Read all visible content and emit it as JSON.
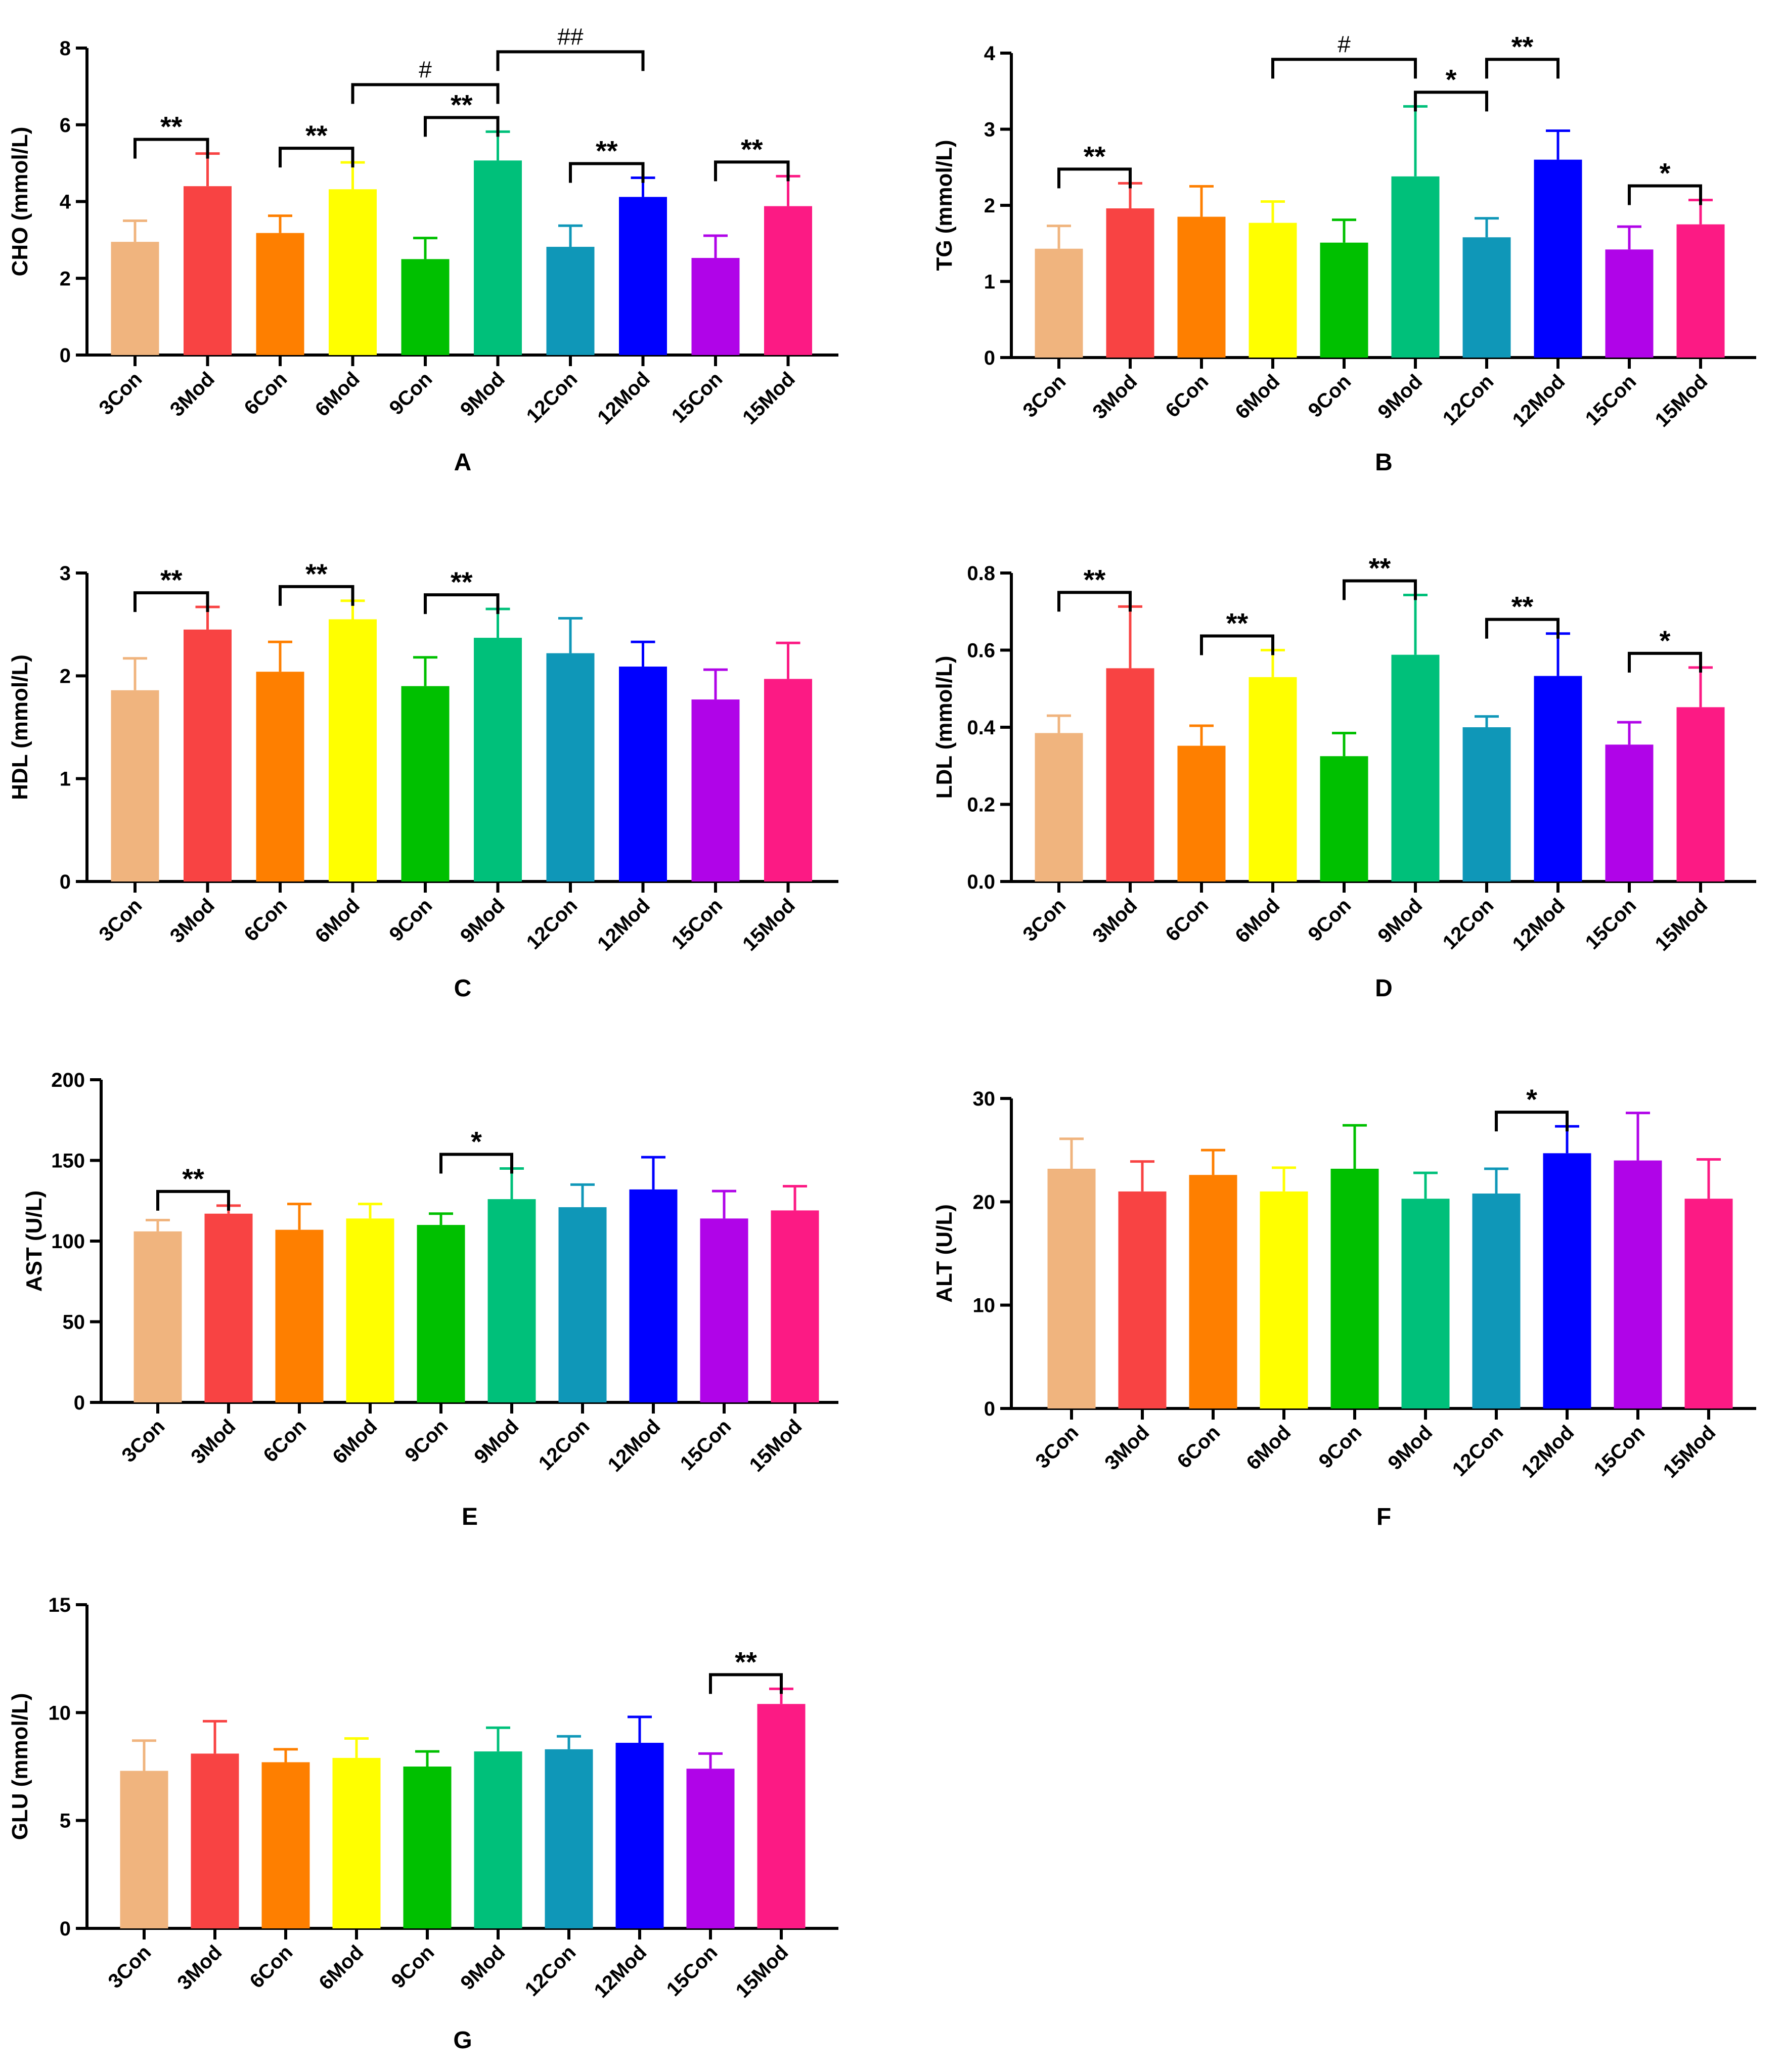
{
  "chart_data": [
    {
      "panel": "A",
      "type": "bar",
      "ylabel": "CHO (mmol/L)",
      "ylim": [
        0,
        8
      ],
      "yticks": [
        0,
        2,
        4,
        6,
        8
      ],
      "categories": [
        "3Con",
        "3Mod",
        "6Con",
        "6Mod",
        "9Con",
        "9Mod",
        "12Con",
        "12Mod",
        "15Con",
        "15Mod"
      ],
      "values": [
        2.95,
        4.4,
        3.18,
        4.32,
        2.5,
        5.07,
        2.82,
        4.12,
        2.53,
        3.88
      ],
      "errors": [
        0.55,
        0.85,
        0.45,
        0.7,
        0.55,
        0.75,
        0.55,
        0.5,
        0.58,
        0.78
      ],
      "brackets": [
        {
          "from": 0,
          "to": 1,
          "label": "**"
        },
        {
          "from": 2,
          "to": 3,
          "label": "**"
        },
        {
          "from": 4,
          "to": 5,
          "label": "**"
        },
        {
          "from": 6,
          "to": 7,
          "label": "**"
        },
        {
          "from": 8,
          "to": 9,
          "label": "**"
        },
        {
          "from": 3,
          "to": 5,
          "label": "#"
        },
        {
          "from": 5,
          "to": 7,
          "label": "##"
        }
      ]
    },
    {
      "panel": "B",
      "type": "bar",
      "ylabel": "TG (mmol/L)",
      "ylim": [
        0,
        4
      ],
      "yticks": [
        0,
        1,
        2,
        3,
        4
      ],
      "categories": [
        "3Con",
        "3Mod",
        "6Con",
        "6Mod",
        "9Con",
        "9Mod",
        "12Con",
        "12Mod",
        "15Con",
        "15Mod"
      ],
      "values": [
        1.43,
        1.96,
        1.85,
        1.77,
        1.51,
        2.38,
        1.58,
        2.6,
        1.42,
        1.75
      ],
      "errors": [
        0.3,
        0.33,
        0.4,
        0.28,
        0.3,
        0.92,
        0.25,
        0.38,
        0.3,
        0.32
      ],
      "brackets": [
        {
          "from": 0,
          "to": 1,
          "label": "**"
        },
        {
          "from": 5,
          "to": 6,
          "label": "*"
        },
        {
          "from": 3,
          "to": 5,
          "label": "#"
        },
        {
          "from": 6,
          "to": 7,
          "label": "**"
        },
        {
          "from": 8,
          "to": 9,
          "label": "*"
        }
      ]
    },
    {
      "panel": "C",
      "type": "bar",
      "ylabel": "HDL (mmol/L)",
      "ylim": [
        0,
        3
      ],
      "yticks": [
        0,
        1,
        2,
        3
      ],
      "categories": [
        "3Con",
        "3Mod",
        "6Con",
        "6Mod",
        "9Con",
        "9Mod",
        "12Con",
        "12Mod",
        "15Con",
        "15Mod"
      ],
      "values": [
        1.86,
        2.45,
        2.04,
        2.55,
        1.9,
        2.37,
        2.22,
        2.09,
        1.77,
        1.97
      ],
      "errors": [
        0.31,
        0.22,
        0.29,
        0.18,
        0.28,
        0.28,
        0.34,
        0.24,
        0.29,
        0.35
      ],
      "brackets": [
        {
          "from": 0,
          "to": 1,
          "label": "**"
        },
        {
          "from": 2,
          "to": 3,
          "label": "**"
        },
        {
          "from": 4,
          "to": 5,
          "label": "**"
        }
      ]
    },
    {
      "panel": "D",
      "type": "bar",
      "ylabel": "LDL (mmol/L)",
      "ylim": [
        0,
        0.8
      ],
      "yticks": [
        0.0,
        0.2,
        0.4,
        0.6,
        0.8
      ],
      "categories": [
        "3Con",
        "3Mod",
        "6Con",
        "6Mod",
        "9Con",
        "9Mod",
        "12Con",
        "12Mod",
        "15Con",
        "15Mod"
      ],
      "values": [
        0.385,
        0.553,
        0.352,
        0.53,
        0.325,
        0.588,
        0.4,
        0.533,
        0.355,
        0.452
      ],
      "errors": [
        0.045,
        0.16,
        0.052,
        0.07,
        0.06,
        0.155,
        0.028,
        0.11,
        0.058,
        0.103
      ],
      "brackets": [
        {
          "from": 0,
          "to": 1,
          "label": "**"
        },
        {
          "from": 2,
          "to": 3,
          "label": "**"
        },
        {
          "from": 4,
          "to": 5,
          "label": "**"
        },
        {
          "from": 6,
          "to": 7,
          "label": "**"
        },
        {
          "from": 8,
          "to": 9,
          "label": "*"
        }
      ]
    },
    {
      "panel": "E",
      "type": "bar",
      "ylabel": "AST (U/L)",
      "ylim": [
        0,
        200
      ],
      "yticks": [
        0,
        50,
        100,
        150,
        200
      ],
      "categories": [
        "3Con",
        "3Mod",
        "6Con",
        "6Mod",
        "9Con",
        "9Mod",
        "12Con",
        "12Mod",
        "15Con",
        "15Mod"
      ],
      "values": [
        106,
        117,
        107,
        114,
        110,
        126,
        121,
        132,
        114,
        119
      ],
      "errors": [
        7,
        5,
        16,
        9,
        7,
        19,
        14,
        20,
        17,
        15
      ],
      "brackets": [
        {
          "from": 0,
          "to": 1,
          "label": "**"
        },
        {
          "from": 4,
          "to": 5,
          "label": "*"
        }
      ]
    },
    {
      "panel": "F",
      "type": "bar",
      "ylabel": "ALT (U/L)",
      "ylim": [
        0,
        30
      ],
      "yticks": [
        0,
        10,
        20,
        30
      ],
      "categories": [
        "3Con",
        "3Mod",
        "6Con",
        "6Mod",
        "9Con",
        "9Mod",
        "12Con",
        "12Mod",
        "15Con",
        "15Mod"
      ],
      "values": [
        23.2,
        21,
        22.6,
        21,
        23.2,
        20.3,
        20.8,
        24.7,
        24,
        20.3
      ],
      "errors": [
        2.9,
        2.9,
        2.4,
        2.3,
        4.2,
        2.5,
        2.4,
        2.6,
        4.6,
        3.8
      ],
      "brackets": [
        {
          "from": 6,
          "to": 7,
          "label": "*"
        }
      ]
    },
    {
      "panel": "G",
      "type": "bar",
      "ylabel": "GLU (mmol/L)",
      "ylim": [
        0,
        15
      ],
      "yticks": [
        0,
        5,
        10,
        15
      ],
      "categories": [
        "3Con",
        "3Mod",
        "6Con",
        "6Mod",
        "9Con",
        "9Mod",
        "12Con",
        "12Mod",
        "15Con",
        "15Mod"
      ],
      "values": [
        7.3,
        8.1,
        7.7,
        7.9,
        7.5,
        8.2,
        8.3,
        8.6,
        7.4,
        10.4
      ],
      "errors": [
        1.4,
        1.5,
        0.6,
        0.9,
        0.7,
        1.1,
        0.6,
        1.2,
        0.7,
        0.7
      ],
      "brackets": [
        {
          "from": 8,
          "to": 9,
          "label": "**"
        }
      ]
    }
  ],
  "colors": [
    "#f0b47e",
    "#f84343",
    "#fe7f00",
    "#ffff00",
    "#00c000",
    "#00c07a",
    "#0f97b8",
    "#0000ff",
    "#b004e8",
    "#fc1a84"
  ]
}
